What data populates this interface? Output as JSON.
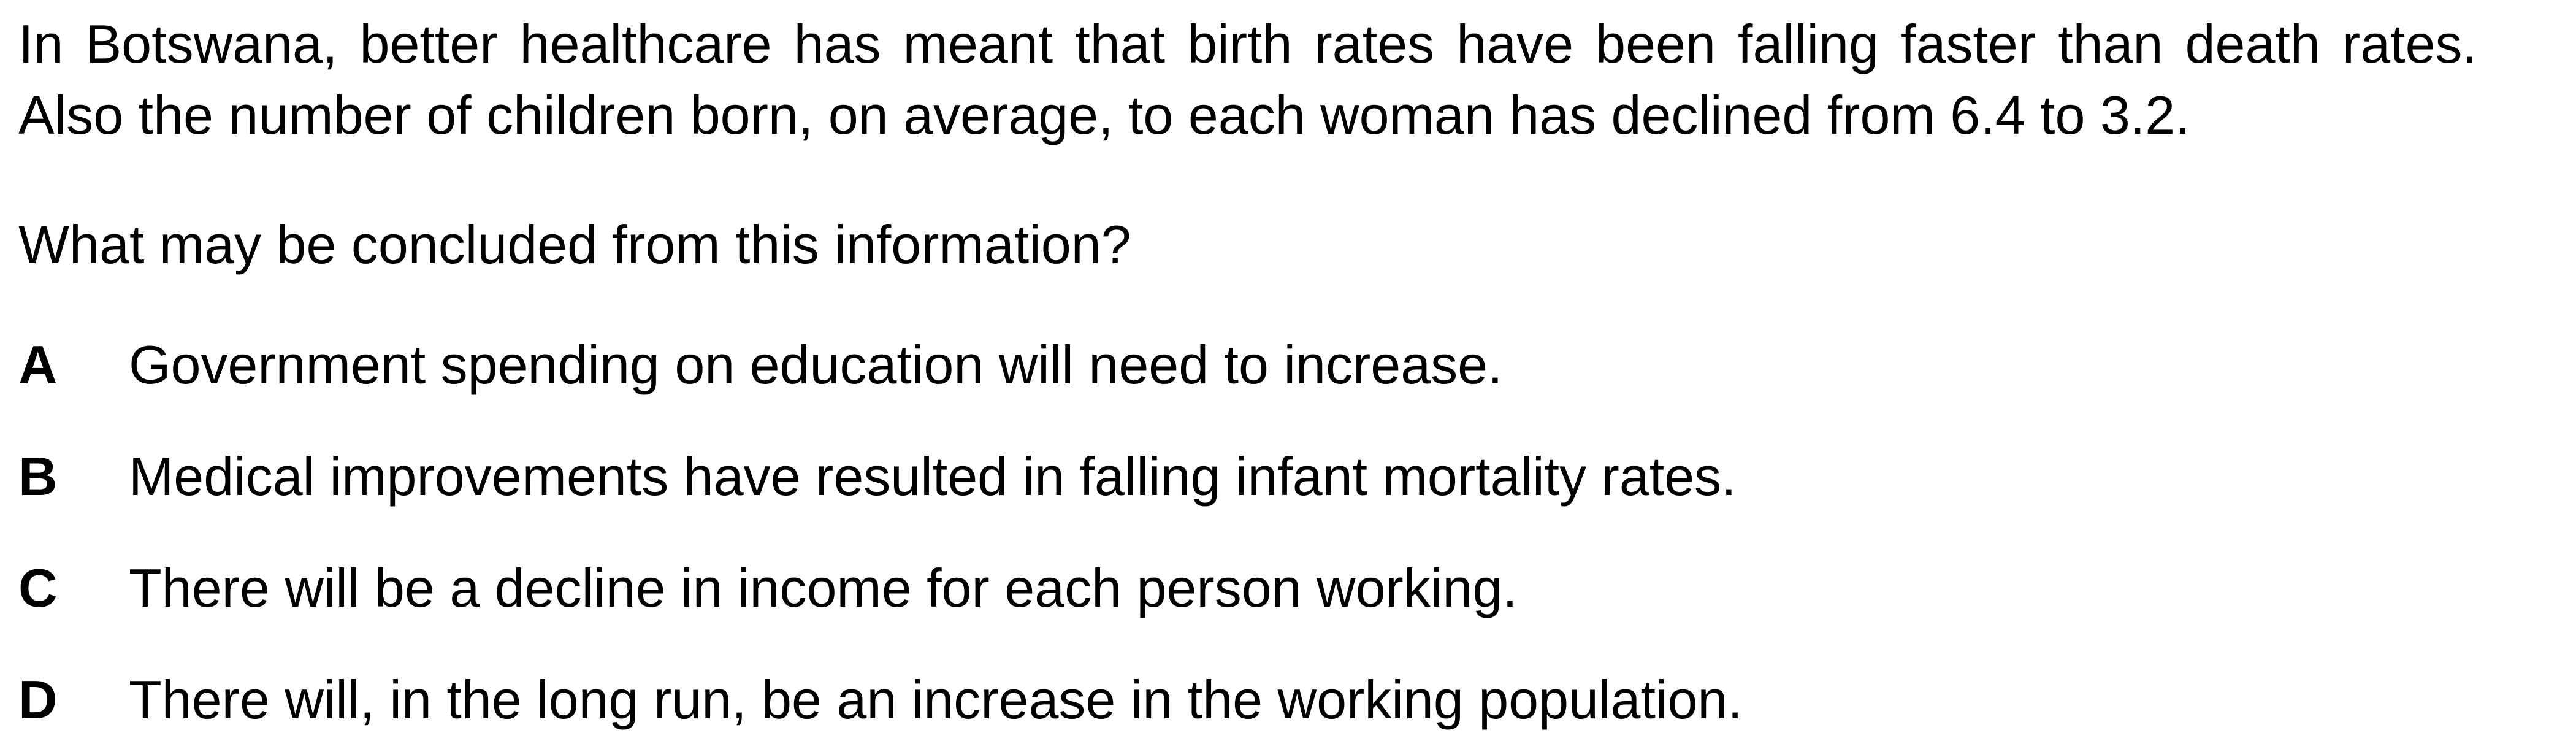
{
  "stem": "In Botswana, better healthcare has meant that birth rates have been falling faster than death rates. Also the number of children born, on average, to each woman has declined from 6.4 to 3.2.",
  "question": "What may be concluded from this information?",
  "options": [
    {
      "letter": "A",
      "text": "Government spending on education will need to increase."
    },
    {
      "letter": "B",
      "text": "Medical improvements have resulted in falling infant mortality rates."
    },
    {
      "letter": "C",
      "text": "There will be a decline in income for each person working."
    },
    {
      "letter": "D",
      "text": "There will, in the long run, be an increase in the working population."
    }
  ]
}
